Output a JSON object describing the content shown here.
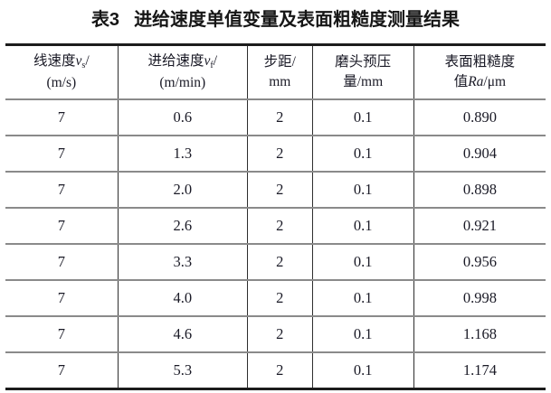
{
  "title": {
    "label": "表3",
    "text": "进给速度单值变量及表面粗糙度测量结果"
  },
  "colors": {
    "background": "#ffffff",
    "text": "#1a1a26",
    "heavy_border": "#1c1c1c",
    "row_separator": "#8a8a8a",
    "column_separator": "#2e2e2e"
  },
  "table": {
    "col_widths": [
      "20.8%",
      "24.0%",
      "12.0%",
      "18.8%",
      "24.4%"
    ],
    "headers": [
      {
        "name": "line-speed",
        "lines": [
          [
            {
              "t": "线速度"
            },
            {
              "t": "v",
              "i": 1
            },
            {
              "t": "s",
              "sub": 1
            },
            {
              "t": "/"
            }
          ],
          [
            {
              "t": "(m/s)"
            }
          ]
        ]
      },
      {
        "name": "feed-speed",
        "lines": [
          [
            {
              "t": "进给速度"
            },
            {
              "t": "v",
              "i": 1
            },
            {
              "t": "f",
              "sub": 1
            },
            {
              "t": "/"
            }
          ],
          [
            {
              "t": "(m/min)"
            }
          ]
        ]
      },
      {
        "name": "step-distance",
        "lines": [
          [
            {
              "t": "步距/"
            }
          ],
          [
            {
              "t": "mm"
            }
          ]
        ]
      },
      {
        "name": "head-precompression",
        "lines": [
          [
            {
              "t": "磨头预压"
            }
          ],
          [
            {
              "t": "量/mm"
            }
          ]
        ]
      },
      {
        "name": "surface-roughness",
        "lines": [
          [
            {
              "t": "表面粗糙度"
            }
          ],
          [
            {
              "t": "值"
            },
            {
              "t": "Ra",
              "i": 1
            },
            {
              "t": "/μm"
            }
          ]
        ]
      }
    ],
    "rows": [
      [
        "7",
        "0.6",
        "2",
        "0.1",
        "0.890"
      ],
      [
        "7",
        "1.3",
        "2",
        "0.1",
        "0.904"
      ],
      [
        "7",
        "2.0",
        "2",
        "0.1",
        "0.898"
      ],
      [
        "7",
        "2.6",
        "2",
        "0.1",
        "0.921"
      ],
      [
        "7",
        "3.3",
        "2",
        "0.1",
        "0.956"
      ],
      [
        "7",
        "4.0",
        "2",
        "0.1",
        "0.998"
      ],
      [
        "7",
        "4.6",
        "2",
        "0.1",
        "1.168"
      ],
      [
        "7",
        "5.3",
        "2",
        "0.1",
        "1.174"
      ]
    ]
  }
}
